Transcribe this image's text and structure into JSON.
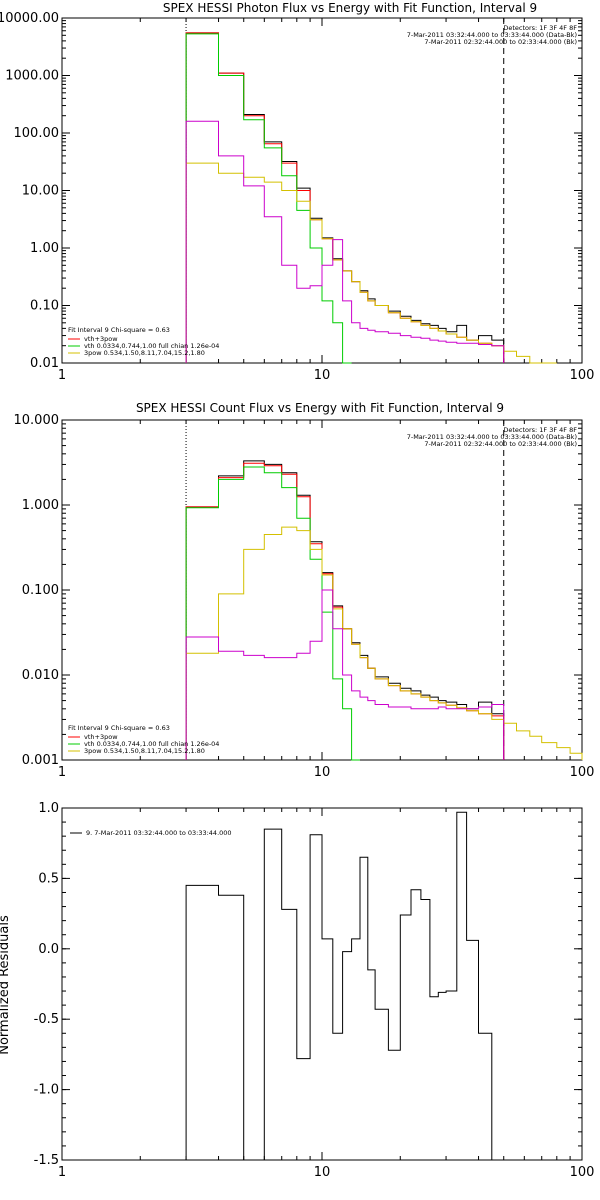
{
  "chart_data": [
    {
      "type": "line",
      "title": "SPEX HESSI Photon Flux vs Energy with Fit Function, Interval 9",
      "xscale": "log",
      "yscale": "log",
      "xlim": [
        1,
        100
      ],
      "ylim": [
        0.01,
        10000
      ],
      "xticks": [
        1,
        10,
        100
      ],
      "xtick_labels": [
        "1",
        "10",
        "100"
      ],
      "yticks": [
        0.01,
        0.1,
        1,
        10,
        100,
        1000,
        10000
      ],
      "ytick_labels": [
        "0.01",
        "0.10",
        "1.00",
        "10.00",
        "100.00",
        "1000.00",
        "10000.00"
      ],
      "vlines": [
        {
          "x": 3,
          "style": "dotted"
        },
        {
          "x": 50,
          "style": "dashed"
        }
      ],
      "legend_top": [
        "Detectors: 1F 3F 4F 8F",
        "7-Mar-2011 03:32:44.000 to 03:33:44.000 (Data-Bk)",
        "7-Mar-2011 02:32:44.000 to 02:33:44.000 (Bk)"
      ],
      "legend_bottom": [
        "Fit Interval 9   Chi-square = 0.63",
        "vth+3pow",
        "vth 0.0334,0.744,1.00  full chian 1.26e-04",
        "3pow 0.534,1.50,8.11,7.04,15.2,1.80"
      ],
      "edges": [
        3,
        4,
        5,
        6,
        7,
        8,
        9,
        10,
        11,
        12,
        13,
        14,
        15,
        16,
        18,
        20,
        22,
        24,
        26,
        28,
        30,
        33,
        36,
        40,
        45,
        50,
        56,
        63,
        70,
        80,
        90,
        100
      ],
      "series": [
        {
          "color": "#000000",
          "values": [
            5500,
            1100,
            210,
            70,
            32,
            11,
            3.3,
            1.5,
            0.65,
            0.4,
            0.26,
            0.18,
            0.13,
            0.1,
            0.08,
            0.065,
            0.055,
            0.048,
            0.045,
            0.04,
            0.035,
            0.045,
            0.025,
            0.03,
            0.025,
            null,
            null,
            null,
            null,
            null,
            null
          ]
        },
        {
          "color": "#ff0000",
          "values": [
            5500,
            1100,
            200,
            65,
            30,
            10,
            3.1,
            1.45,
            0.62,
            0.4,
            0.26,
            0.17,
            0.12,
            0.1,
            0.075,
            0.06,
            0.052,
            0.045,
            0.04,
            0.036,
            0.032,
            0.028,
            0.025,
            0.022,
            0.02,
            null,
            null,
            null,
            null,
            null,
            null
          ]
        },
        {
          "color": "#00cc00",
          "values": [
            5300,
            1000,
            170,
            55,
            18,
            4.5,
            1.0,
            0.12,
            0.05,
            0.005,
            null,
            null,
            null,
            null,
            null,
            null,
            null,
            null,
            null,
            null,
            null,
            null,
            null,
            null,
            null,
            null,
            null,
            null,
            null,
            null,
            null
          ]
        },
        {
          "color": "#d4c000",
          "values": [
            30,
            20,
            17,
            14,
            10,
            6.5,
            3.1,
            1.45,
            0.62,
            0.4,
            0.26,
            0.17,
            0.12,
            0.1,
            0.075,
            0.06,
            0.052,
            0.045,
            0.04,
            0.036,
            0.032,
            0.028,
            0.025,
            0.022,
            0.02,
            0.016,
            0.013,
            0.01,
            0.008,
            null,
            null
          ]
        },
        {
          "color": "#cc00cc",
          "values": [
            160,
            40,
            12,
            3.5,
            0.5,
            0.2,
            0.22,
            0.5,
            1.4,
            0.12,
            0.05,
            0.04,
            0.037,
            0.035,
            0.033,
            0.03,
            0.028,
            0.027,
            0.025,
            0.024,
            0.023,
            0.022,
            0.022,
            0.021,
            0.02,
            null,
            null,
            null,
            null,
            null,
            null
          ]
        }
      ]
    },
    {
      "type": "line",
      "title": "SPEX HESSI Count Flux vs Energy with Fit Function, Interval 9",
      "xscale": "log",
      "yscale": "log",
      "xlim": [
        1,
        100
      ],
      "ylim": [
        0.001,
        10
      ],
      "xticks": [
        1,
        10,
        100
      ],
      "xtick_labels": [
        "1",
        "10",
        "100"
      ],
      "yticks": [
        0.001,
        0.01,
        0.1,
        1,
        10
      ],
      "ytick_labels": [
        "0.001",
        "0.010",
        "0.100",
        "1.000",
        "10.000"
      ],
      "vlines": [
        {
          "x": 3,
          "style": "dotted"
        },
        {
          "x": 50,
          "style": "dashed"
        }
      ],
      "legend_top": [
        "Detectors: 1F 3F 4F 8F",
        "7-Mar-2011 03:32:44.000 to 03:33:44.000 (Data-Bk)",
        "7-Mar-2011 02:32:44.000 to 02:33:44.000 (Bk)"
      ],
      "legend_bottom": [
        "Fit Interval 9   Chi-square = 0.63",
        "vth+3pow",
        "vth 0.0334,0.744,1.00  full chian 1.26e-04",
        "3pow 0.534,1.50,8.11,7.04,15.2,1.80"
      ],
      "edges": [
        3,
        4,
        5,
        6,
        7,
        8,
        9,
        10,
        11,
        12,
        13,
        14,
        15,
        16,
        18,
        20,
        22,
        24,
        26,
        28,
        30,
        33,
        36,
        40,
        45,
        50,
        56,
        63,
        70,
        80,
        90,
        100
      ],
      "series": [
        {
          "color": "#000000",
          "values": [
            0.95,
            2.2,
            3.3,
            3.0,
            2.4,
            1.3,
            0.37,
            0.16,
            0.065,
            0.035,
            0.024,
            0.017,
            0.012,
            0.0095,
            0.008,
            0.007,
            0.0065,
            0.0058,
            0.0055,
            0.005,
            0.0048,
            0.0045,
            0.004,
            0.0048,
            0.0035,
            null,
            null,
            null,
            null,
            null,
            null
          ]
        },
        {
          "color": "#ff0000",
          "values": [
            0.95,
            2.1,
            3.1,
            2.9,
            2.3,
            1.25,
            0.35,
            0.155,
            0.063,
            0.035,
            0.023,
            0.016,
            0.012,
            0.009,
            0.0075,
            0.0065,
            0.006,
            0.0055,
            0.005,
            0.0047,
            0.0044,
            0.0041,
            0.0038,
            0.0035,
            0.0033,
            null,
            null,
            null,
            null,
            null,
            null
          ]
        },
        {
          "color": "#00cc00",
          "values": [
            0.93,
            2.0,
            2.8,
            2.4,
            1.6,
            0.7,
            0.23,
            0.055,
            0.009,
            0.004,
            0.0005,
            null,
            null,
            null,
            null,
            null,
            null,
            null,
            null,
            null,
            null,
            null,
            null,
            null,
            null,
            null,
            null,
            null,
            null,
            null,
            null
          ]
        },
        {
          "color": "#d4c000",
          "values": [
            0.018,
            0.09,
            0.3,
            0.45,
            0.55,
            0.5,
            0.3,
            0.15,
            0.06,
            0.035,
            0.023,
            0.016,
            0.012,
            0.009,
            0.0075,
            0.0065,
            0.006,
            0.0055,
            0.005,
            0.0047,
            0.0044,
            0.0041,
            0.0038,
            0.0035,
            0.003,
            0.0027,
            0.0022,
            0.0019,
            0.0016,
            0.0014,
            0.0012
          ]
        },
        {
          "color": "#cc00cc",
          "values": [
            0.028,
            0.019,
            0.017,
            0.016,
            0.016,
            0.018,
            0.025,
            0.1,
            0.035,
            0.01,
            0.0065,
            0.0055,
            0.005,
            0.0045,
            0.0042,
            0.0042,
            0.004,
            0.004,
            0.004,
            0.0042,
            0.004,
            0.004,
            0.004,
            0.0042,
            0.0045,
            null,
            null,
            null,
            null,
            null,
            null
          ]
        }
      ]
    },
    {
      "type": "line",
      "title": "",
      "ylabel": "Normalized Residuals",
      "xscale": "log",
      "yscale": "linear",
      "xlim": [
        1,
        100
      ],
      "ylim": [
        -1.5,
        1.0
      ],
      "xticks": [
        1,
        10,
        100
      ],
      "xtick_labels": [
        "1",
        "10",
        "100"
      ],
      "yticks": [
        -1.5,
        -1.0,
        -0.5,
        0.0,
        0.5,
        1.0
      ],
      "ytick_labels": [
        "-1.5",
        "-1.0",
        "-0.5",
        "0.0",
        "0.5",
        "1.0"
      ],
      "legend_top": [
        "9. 7-Mar-2011 03:32:44.000 to 03:33:44.000"
      ],
      "edges": [
        3,
        4,
        5,
        6,
        7,
        8,
        9,
        10,
        11,
        12,
        13,
        14,
        15,
        16,
        18,
        20,
        22,
        24,
        26,
        28,
        30,
        33,
        36,
        40,
        45,
        50
      ],
      "series": [
        {
          "color": "#000000",
          "values": [
            0.45,
            0.38,
            -1.6,
            0.85,
            0.28,
            -0.78,
            0.81,
            0.07,
            -0.6,
            -0.02,
            0.07,
            0.65,
            -0.15,
            -0.43,
            -0.72,
            0.24,
            0.42,
            0.35,
            -0.34,
            -0.31,
            -0.3,
            0.97,
            0.06,
            -0.6,
            -1.6
          ]
        }
      ]
    }
  ]
}
